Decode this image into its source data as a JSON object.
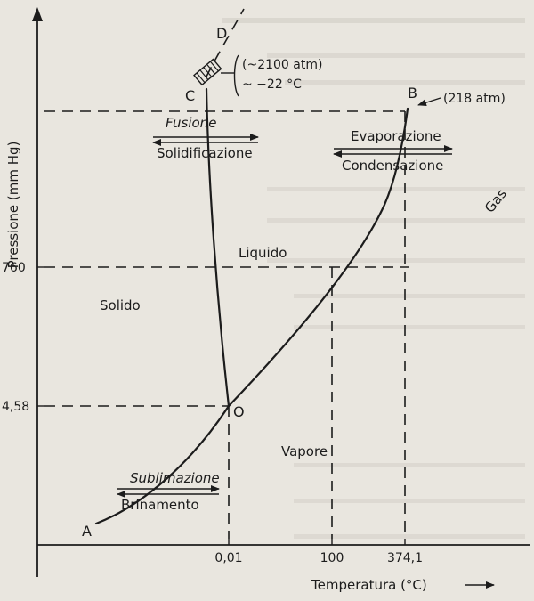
{
  "axes": {
    "y_label": "Pressione (mm Hg)",
    "x_label": "Temperatura (°C)",
    "y_ticks": [
      "760",
      "4,58"
    ],
    "x_ticks": [
      "0,01",
      "100",
      "374,1"
    ]
  },
  "points": {
    "A": "A",
    "B": "B",
    "C": "C",
    "D": "D",
    "O": "O"
  },
  "annotations": {
    "critical_point": "(218 atm)",
    "c_pressure": "(~2100 atm)",
    "c_temperature": "~ −22 °C"
  },
  "regions": {
    "solid": "Solido",
    "liquid": "Liquido",
    "vapor": "Vapore",
    "gas": "Gas"
  },
  "transitions": {
    "fusion": "Fusione",
    "solidification": "Solidificazione",
    "evaporation": "Evaporazione",
    "condensation": "Condensazione",
    "sublimation": "Sublimazione",
    "deposition": "Brinamento"
  }
}
